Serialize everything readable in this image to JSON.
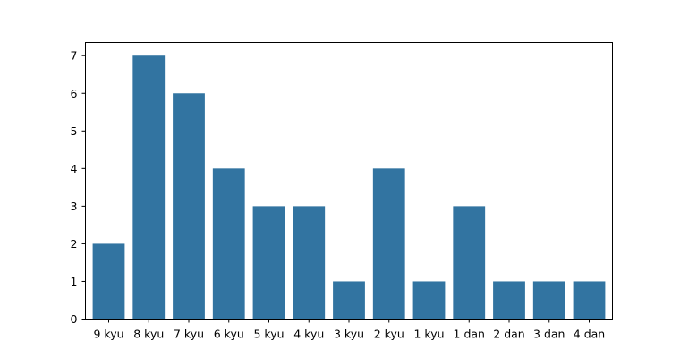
{
  "chart_data": {
    "type": "bar",
    "title": "",
    "xlabel": "",
    "ylabel": "",
    "categories": [
      "9 kyu",
      "8 kyu",
      "7 kyu",
      "6 kyu",
      "5 kyu",
      "4 kyu",
      "3 kyu",
      "2 kyu",
      "1 kyu",
      "1 dan",
      "2 dan",
      "3 dan",
      "4 dan"
    ],
    "values": [
      2,
      7,
      6,
      4,
      3,
      3,
      1,
      4,
      1,
      3,
      1,
      1,
      1
    ],
    "ylim": [
      0,
      7.35
    ],
    "yticks": [
      0,
      1,
      2,
      3,
      4,
      5,
      6,
      7
    ],
    "grid": false,
    "legend": "none",
    "bar_color": "#3274a1"
  }
}
